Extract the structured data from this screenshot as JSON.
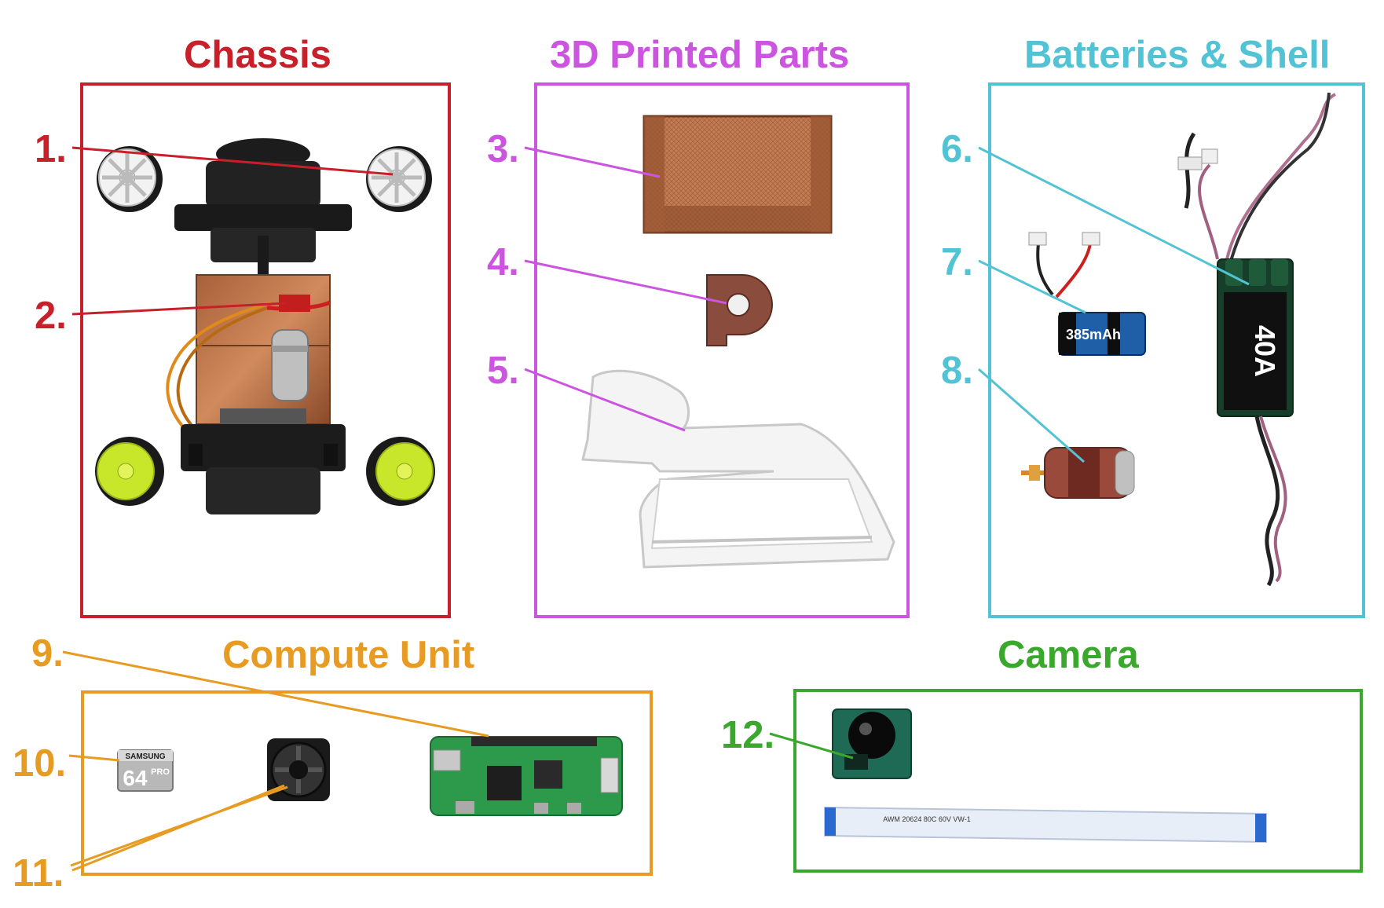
{
  "colors": {
    "chassis": "#c8202a",
    "printed": "#cc55e0",
    "batteries": "#52c3d4",
    "compute": "#e89b22",
    "camera": "#3aa82c"
  },
  "sections": {
    "chassis": "Chassis",
    "printed": "3D Printed Parts",
    "batteries": "Batteries & Shell",
    "compute": "Compute Unit",
    "camera": "Camera"
  },
  "numbers": {
    "n1": "1.",
    "n2": "2.",
    "n3": "3.",
    "n4": "4.",
    "n5": "5.",
    "n6": "6.",
    "n7": "7.",
    "n8": "8.",
    "n9": "9.",
    "n10": "10.",
    "n11": "11.",
    "n12": "12."
  },
  "parts": {
    "sd_brand": "SAMSUNG",
    "sd_capacity": "64",
    "sd_series": "PRO",
    "battery_label": "385mAh",
    "esc_label": "40A",
    "ribbon_text": "AWM 20624 80C 60V VW-1"
  }
}
